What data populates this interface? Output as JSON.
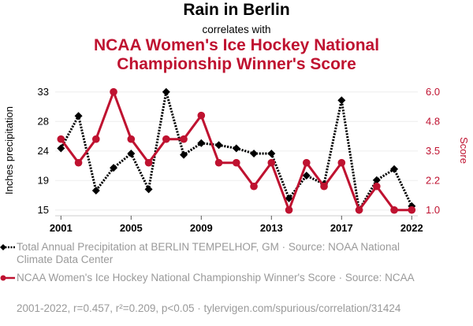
{
  "header": {
    "title": "Rain in Berlin",
    "subtitle": "correlates with",
    "title2": "NCAA Women's Ice Hockey National Championship Winner's Score"
  },
  "colors": {
    "series1": "#000000",
    "series2": "#bf1230",
    "grid": "#eeeeee",
    "legend_text": "#9a9a9a"
  },
  "chart_data": {
    "type": "line",
    "title": "Rain in Berlin correlates with NCAA Women's Ice Hockey National Championship Winner's Score",
    "x": [
      "2001",
      "2002",
      "2003",
      "2004",
      "2005",
      "2006",
      "2007",
      "2008",
      "2009",
      "2010",
      "2011",
      "2012",
      "2013",
      "2014",
      "2015",
      "2016",
      "2017",
      "2018",
      "2019",
      "2021",
      "2022"
    ],
    "xticks": [
      {
        "index": 0,
        "label": "2001"
      },
      {
        "index": 4,
        "label": "2005"
      },
      {
        "index": 8,
        "label": "2009"
      },
      {
        "index": 12,
        "label": "2013"
      },
      {
        "index": 16,
        "label": "2017"
      },
      {
        "index": 20,
        "label": "2022"
      }
    ],
    "xlabel": "",
    "ylabel_left": "Inches precipitation",
    "ylabel_right": "Score",
    "ylim_left": [
      14.8,
      33.0
    ],
    "ylim_right": [
      1.0,
      6.0
    ],
    "yticks_left": [
      "15",
      "19",
      "24",
      "28",
      "33"
    ],
    "yticks_right": [
      "1.0",
      "2.2",
      "3.5",
      "4.8",
      "6.0"
    ],
    "grid": true,
    "series": [
      {
        "name": "Total Annual Precipitation at BERLIN TEMPELHOF, GM",
        "axis": "left",
        "style": "dotted-diamond",
        "values": [
          24.3,
          29.3,
          17.8,
          21.3,
          23.5,
          18.0,
          33.0,
          23.3,
          25.1,
          24.8,
          24.3,
          23.5,
          23.5,
          16.6,
          20.1,
          18.8,
          31.7,
          14.8,
          19.4,
          21.1,
          15.4
        ]
      },
      {
        "name": "NCAA Women's Ice Hockey National Championship Winner's Score",
        "axis": "right",
        "style": "solid-circle",
        "values": [
          4,
          3,
          4,
          6,
          4,
          3,
          4,
          4,
          5,
          3,
          3,
          2,
          3,
          1,
          3,
          2,
          3,
          1,
          2,
          1,
          1
        ]
      }
    ],
    "legend_placement": "bottom"
  },
  "legend": {
    "items": [
      {
        "label": "Total Annual Precipitation at BERLIN TEMPELHOF, GM · Source: NOAA National Climate Data Center"
      },
      {
        "label": "NCAA Women's Ice Hockey National Championship Winner's Score · Source: NCAA"
      }
    ]
  },
  "footer": {
    "text": "2001-2022, r=0.457, r²=0.209, p<0.05 · tylervigen.com/spurious/correlation/31424"
  }
}
